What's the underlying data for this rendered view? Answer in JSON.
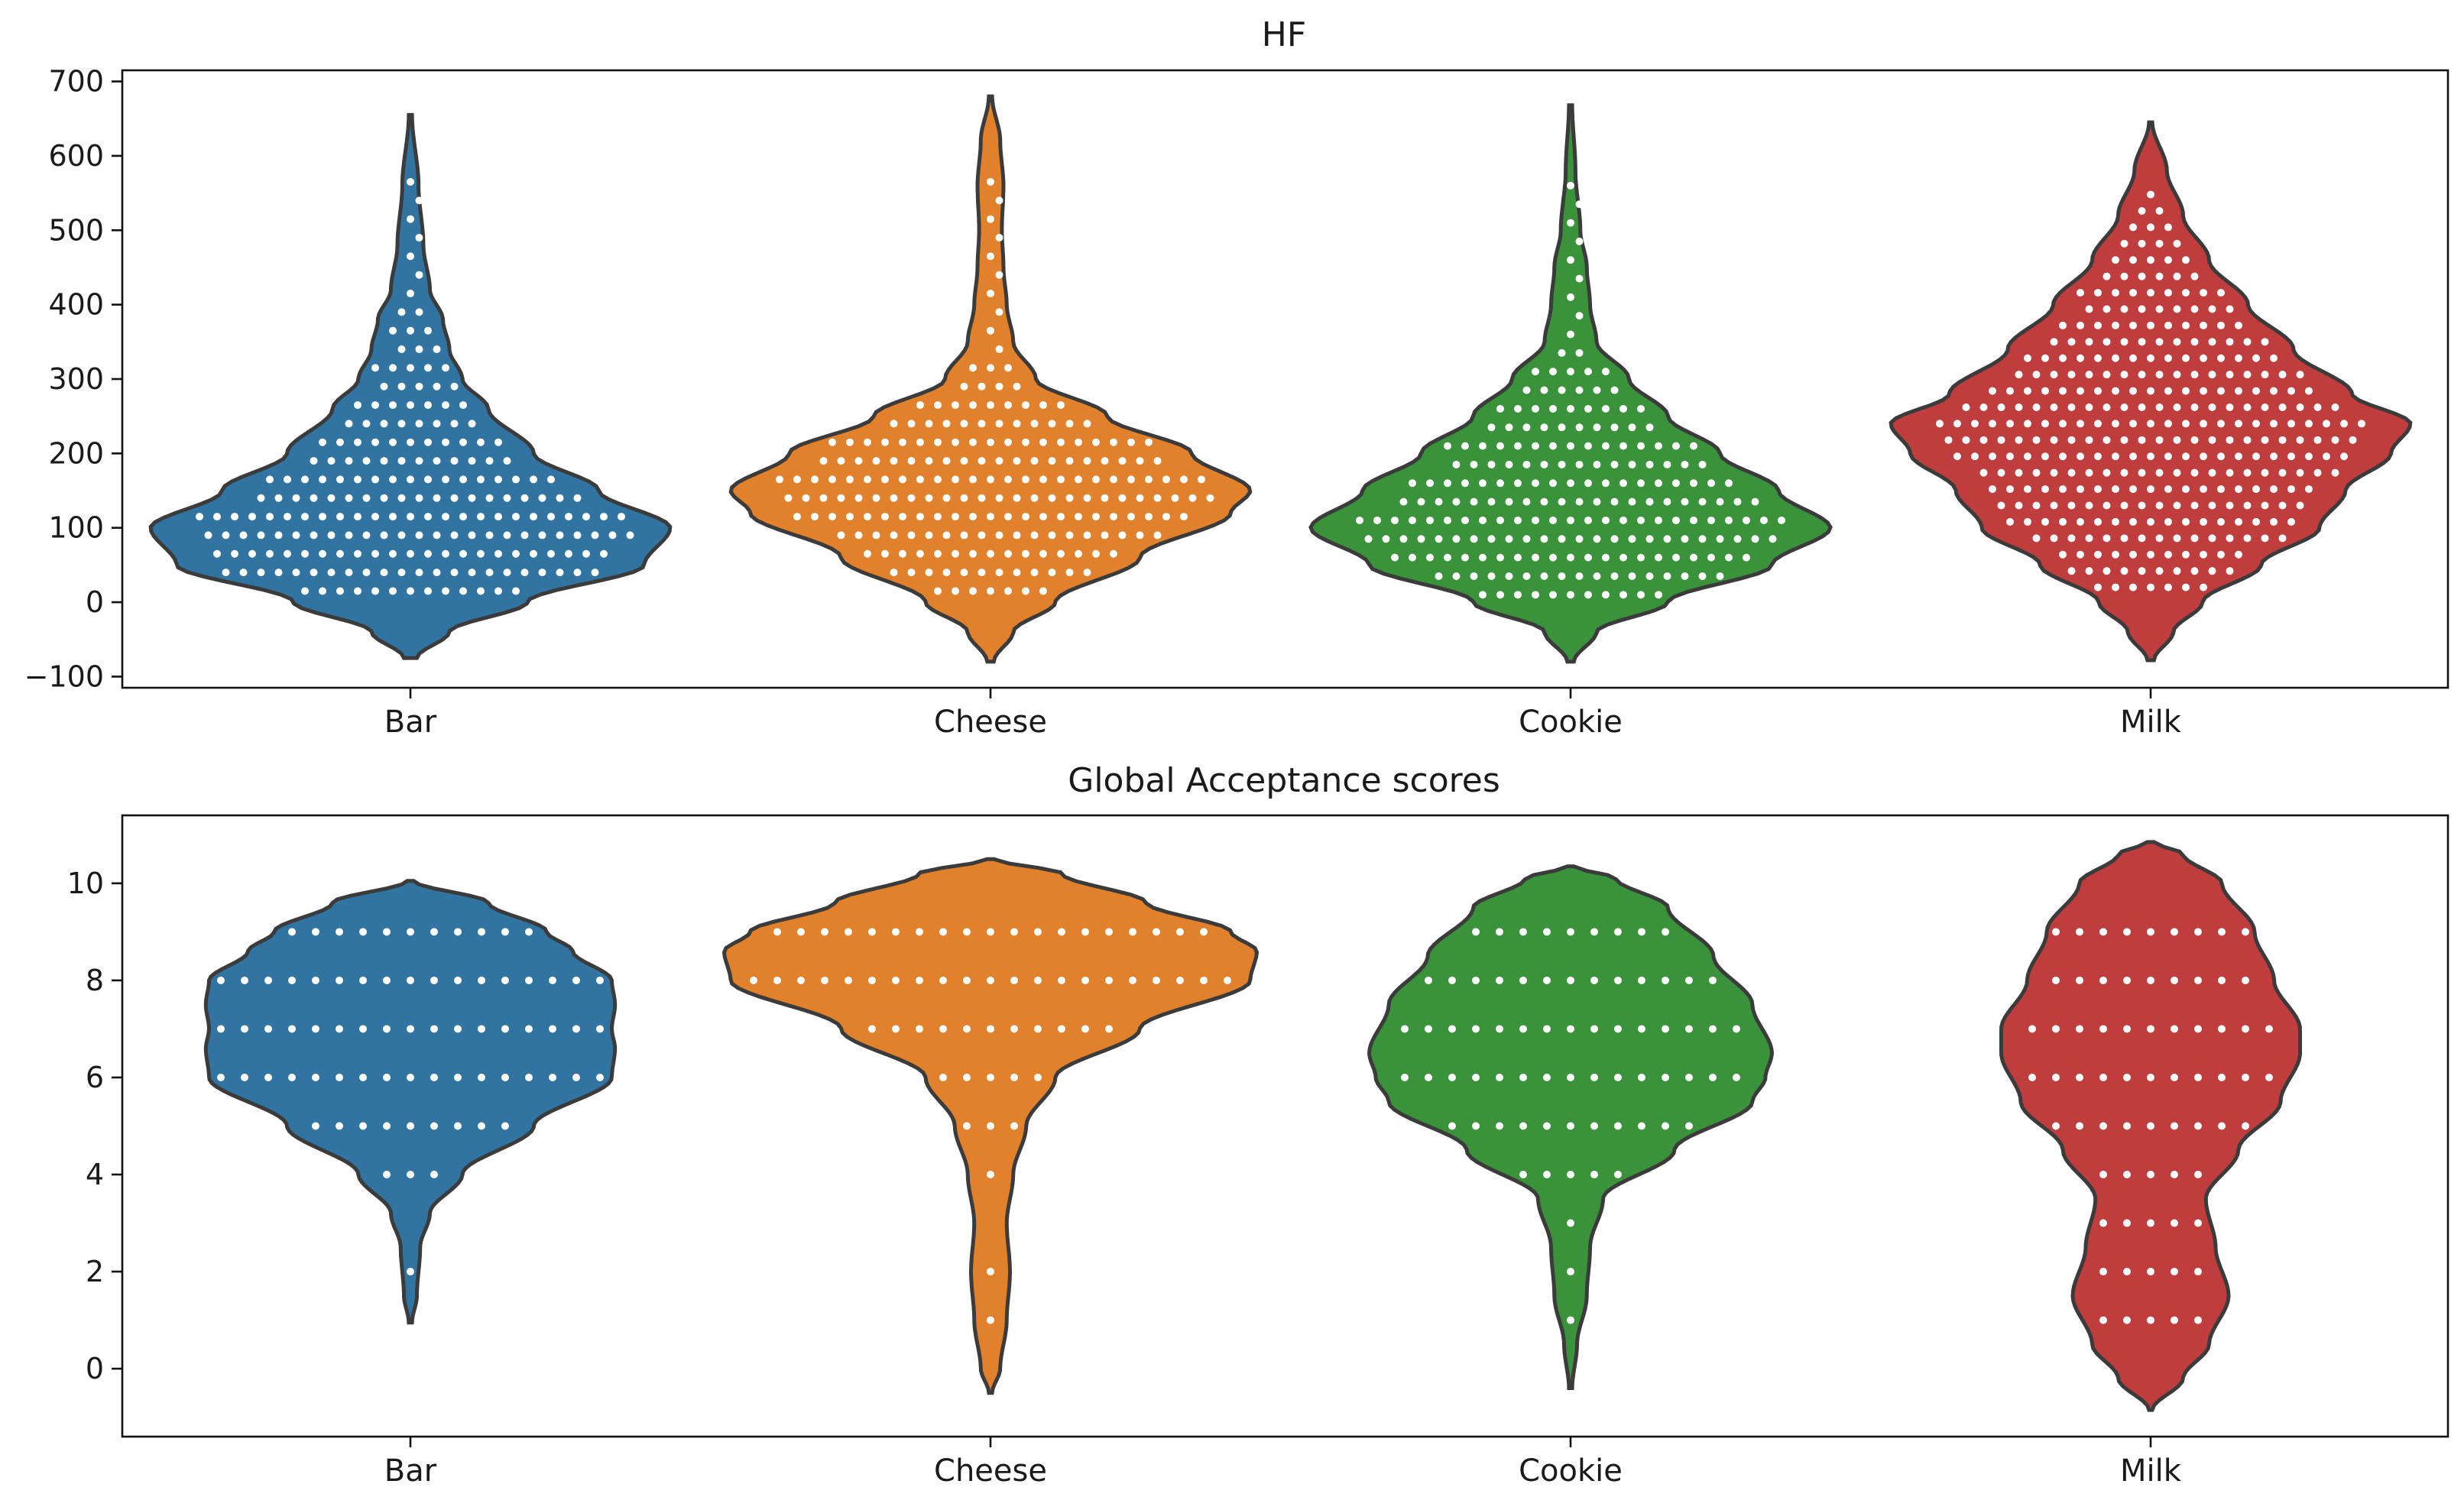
{
  "chart_data": [
    {
      "type": "violin",
      "title": "HF",
      "categories": [
        "Bar",
        "Cheese",
        "Cookie",
        "Milk"
      ],
      "colors": [
        "#3274a1",
        "#e1812c",
        "#3a923a",
        "#c03d3e"
      ],
      "ylim": [
        -115,
        715
      ],
      "yticks": [
        -100,
        0,
        100,
        200,
        300,
        400,
        500,
        600,
        700
      ],
      "ytick_labels": [
        "−100",
        "0",
        "100",
        "200",
        "300",
        "400",
        "500",
        "600",
        "700"
      ],
      "series": [
        {
          "name": "Bar",
          "min": -75,
          "max": 655,
          "profile": [
            [
              -75,
              0.02
            ],
            [
              -40,
              0.12
            ],
            [
              0,
              0.36
            ],
            [
              50,
              0.72
            ],
            [
              100,
              0.8
            ],
            [
              150,
              0.58
            ],
            [
              200,
              0.38
            ],
            [
              260,
              0.24
            ],
            [
              300,
              0.16
            ],
            [
              340,
              0.12
            ],
            [
              380,
              0.1
            ],
            [
              420,
              0.06
            ],
            [
              480,
              0.04
            ],
            [
              560,
              0.025
            ],
            [
              655,
              0.005
            ]
          ],
          "dots": {
            "min": 15,
            "max": 575,
            "step": 25,
            "density": 1.0
          }
        },
        {
          "name": "Cheese",
          "min": -80,
          "max": 680,
          "profile": [
            [
              -80,
              0.01
            ],
            [
              -40,
              0.07
            ],
            [
              0,
              0.2
            ],
            [
              60,
              0.46
            ],
            [
              120,
              0.74
            ],
            [
              150,
              0.8
            ],
            [
              200,
              0.62
            ],
            [
              250,
              0.36
            ],
            [
              300,
              0.14
            ],
            [
              350,
              0.07
            ],
            [
              400,
              0.05
            ],
            [
              450,
              0.04
            ],
            [
              500,
              0.035
            ],
            [
              560,
              0.04
            ],
            [
              620,
              0.03
            ],
            [
              680,
              0.005
            ]
          ],
          "dots": {
            "min": 15,
            "max": 580,
            "step": 25,
            "density": 1.0
          }
        },
        {
          "name": "Cookie",
          "min": -80,
          "max": 668,
          "profile": [
            [
              -80,
              0.01
            ],
            [
              -40,
              0.08
            ],
            [
              0,
              0.3
            ],
            [
              50,
              0.62
            ],
            [
              100,
              0.8
            ],
            [
              150,
              0.64
            ],
            [
              200,
              0.46
            ],
            [
              250,
              0.3
            ],
            [
              300,
              0.18
            ],
            [
              350,
              0.08
            ],
            [
              400,
              0.06
            ],
            [
              450,
              0.05
            ],
            [
              500,
              0.03
            ],
            [
              580,
              0.015
            ],
            [
              668,
              0.005
            ]
          ],
          "dots": {
            "min": 10,
            "max": 585,
            "step": 25,
            "density": 1.0
          }
        },
        {
          "name": "Milk",
          "min": -78,
          "max": 645,
          "profile": [
            [
              -78,
              0.01
            ],
            [
              -40,
              0.07
            ],
            [
              0,
              0.16
            ],
            [
              50,
              0.34
            ],
            [
              100,
              0.52
            ],
            [
              150,
              0.6
            ],
            [
              200,
              0.74
            ],
            [
              240,
              0.8
            ],
            [
              280,
              0.62
            ],
            [
              340,
              0.44
            ],
            [
              400,
              0.3
            ],
            [
              460,
              0.18
            ],
            [
              520,
              0.1
            ],
            [
              580,
              0.05
            ],
            [
              645,
              0.005
            ]
          ],
          "dots": {
            "min": 20,
            "max": 555,
            "step": 22,
            "density": 1.0
          }
        }
      ]
    },
    {
      "type": "violin",
      "title": "Global Acceptance scores",
      "categories": [
        "Bar",
        "Cheese",
        "Cookie",
        "Milk"
      ],
      "colors": [
        "#3274a1",
        "#e1812c",
        "#3a923a",
        "#c03d3e"
      ],
      "ylim": [
        -1.4,
        11.4
      ],
      "yticks": [
        0,
        2,
        4,
        6,
        8,
        10
      ],
      "ytick_labels": [
        "0",
        "2",
        "4",
        "6",
        "8",
        "10"
      ],
      "series": [
        {
          "name": "Bar",
          "min": 0.95,
          "max": 10.05,
          "profile": [
            [
              0.95,
              0.005
            ],
            [
              1.5,
              0.02
            ],
            [
              2.5,
              0.03
            ],
            [
              3.2,
              0.06
            ],
            [
              4,
              0.16
            ],
            [
              5,
              0.38
            ],
            [
              6,
              0.62
            ],
            [
              6.6,
              0.63
            ],
            [
              7,
              0.62
            ],
            [
              7.5,
              0.63
            ],
            [
              8,
              0.62
            ],
            [
              8.6,
              0.5
            ],
            [
              9,
              0.42
            ],
            [
              9.6,
              0.24
            ],
            [
              10.05,
              0.01
            ]
          ],
          "dots": {
            "levels": [
              2,
              4,
              5,
              6,
              7,
              8,
              9
            ]
          }
        },
        {
          "name": "Cheese",
          "min": -0.5,
          "max": 10.5,
          "profile": [
            [
              -0.5,
              0.005
            ],
            [
              0,
              0.03
            ],
            [
              1,
              0.05
            ],
            [
              2,
              0.06
            ],
            [
              3,
              0.05
            ],
            [
              4,
              0.07
            ],
            [
              5,
              0.11
            ],
            [
              6,
              0.2
            ],
            [
              7,
              0.46
            ],
            [
              8,
              0.8
            ],
            [
              8.6,
              0.82
            ],
            [
              9,
              0.74
            ],
            [
              9.6,
              0.48
            ],
            [
              10.2,
              0.22
            ],
            [
              10.5,
              0.01
            ]
          ],
          "dots": {
            "levels": [
              1,
              2,
              4,
              5,
              6,
              7,
              8,
              9
            ]
          }
        },
        {
          "name": "Cookie",
          "min": -0.4,
          "max": 10.35,
          "profile": [
            [
              -0.4,
              0.005
            ],
            [
              0.5,
              0.02
            ],
            [
              1.5,
              0.05
            ],
            [
              2.5,
              0.06
            ],
            [
              3.5,
              0.1
            ],
            [
              4.5,
              0.32
            ],
            [
              5.5,
              0.56
            ],
            [
              6,
              0.6
            ],
            [
              6.5,
              0.62
            ],
            [
              7.5,
              0.56
            ],
            [
              8.5,
              0.44
            ],
            [
              9.5,
              0.3
            ],
            [
              10.1,
              0.14
            ],
            [
              10.35,
              0.01
            ]
          ],
          "dots": {
            "levels": [
              1,
              2,
              3,
              4,
              5,
              6,
              7,
              8,
              9
            ]
          }
        },
        {
          "name": "Milk",
          "min": -0.85,
          "max": 10.85,
          "profile": [
            [
              -0.85,
              0.005
            ],
            [
              -0.2,
              0.1
            ],
            [
              0.5,
              0.18
            ],
            [
              1.5,
              0.24
            ],
            [
              2.5,
              0.2
            ],
            [
              3.5,
              0.17
            ],
            [
              4.5,
              0.27
            ],
            [
              5.5,
              0.4
            ],
            [
              6.5,
              0.46
            ],
            [
              7,
              0.46
            ],
            [
              8,
              0.38
            ],
            [
              9,
              0.32
            ],
            [
              10,
              0.22
            ],
            [
              10.6,
              0.1
            ],
            [
              10.85,
              0.01
            ]
          ],
          "dots": {
            "levels": [
              1,
              2,
              3,
              4,
              5,
              6,
              7,
              8,
              9
            ]
          }
        }
      ]
    }
  ]
}
